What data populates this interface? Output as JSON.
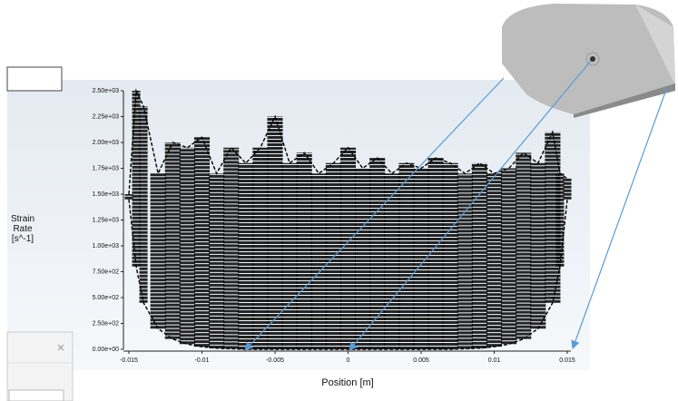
{
  "chart_data": {
    "type": "band",
    "xlabel": "Position [m]",
    "ylabel": "Strain Rate [s^-1]",
    "x": [
      -0.015,
      -0.0145,
      -0.014,
      -0.013,
      -0.012,
      -0.011,
      -0.01,
      -0.009,
      -0.008,
      -0.007,
      -0.006,
      -0.005,
      -0.004,
      -0.003,
      -0.002,
      -0.001,
      0,
      0.001,
      0.002,
      0.003,
      0.004,
      0.005,
      0.006,
      0.007,
      0.008,
      0.009,
      0.01,
      0.011,
      0.012,
      0.013,
      0.014,
      0.0145,
      0.015
    ],
    "series": [
      {
        "color": "#000000",
        "values": [
          1500,
          2500,
          2350,
          1700,
          2000,
          1950,
          2050,
          1700,
          1950,
          1800,
          1950,
          2250,
          1800,
          1900,
          1700,
          1800,
          1950,
          1750,
          1850,
          1700,
          1800,
          1750,
          1850,
          1800,
          1700,
          1800,
          1700,
          1750,
          1900,
          1800,
          2100,
          1700,
          1650
        ]
      },
      {
        "color": "#000000",
        "values": [
          1450,
          800,
          450,
          200,
          100,
          50,
          25,
          10,
          5,
          0,
          0,
          0,
          0,
          0,
          0,
          0,
          0,
          0,
          0,
          0,
          0,
          0,
          0,
          0,
          5,
          10,
          25,
          50,
          100,
          200,
          450,
          800,
          1450
        ]
      }
    ],
    "xlim": [
      -0.015,
      0.015
    ],
    "ylim": [
      0,
      2500
    ],
    "xticks": [
      -0.015,
      -0.01,
      -0.005,
      0,
      0.005,
      0.01,
      0.015
    ],
    "yticks": [
      {
        "value": 0,
        "label": "0.00e+00"
      },
      {
        "value": 250,
        "label": "2.50e+02"
      },
      {
        "value": 500,
        "label": "5.00e+02"
      },
      {
        "value": 750,
        "label": "7.50e+02"
      },
      {
        "value": 1000,
        "label": "1.00e+03"
      },
      {
        "value": 1250,
        "label": "1.25e+03"
      },
      {
        "value": 1500,
        "label": "1.50e+03"
      },
      {
        "value": 1750,
        "label": "1.75e+03"
      },
      {
        "value": 2000,
        "label": "2.00e+03"
      },
      {
        "value": 2250,
        "label": "2.25e+03"
      },
      {
        "value": 2500,
        "label": "2.50e+03"
      }
    ]
  }
}
